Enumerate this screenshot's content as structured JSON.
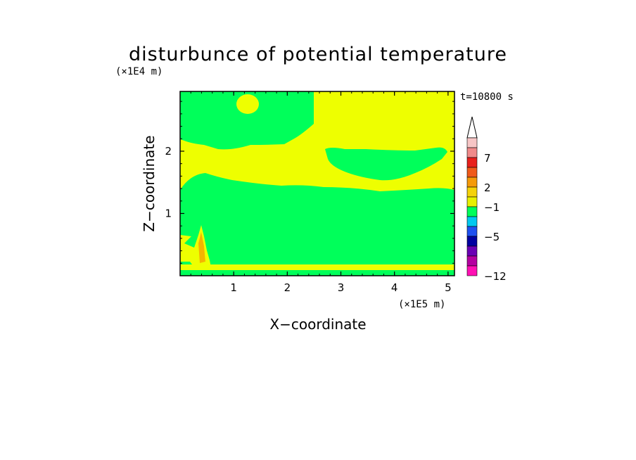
{
  "chart_data": {
    "type": "heatmap",
    "title": "disturbunce of potential temperature",
    "xlabel": "X−coordinate",
    "ylabel": "Z−coordinate",
    "x_unit": "(×1E5 m)",
    "y_unit": "(×1E4 m)",
    "time_label": "t=10800 s",
    "xlim": [
      0,
      5.12
    ],
    "ylim": [
      0,
      2.96
    ],
    "x_ticks": [
      "1",
      "2",
      "3",
      "4",
      "5"
    ],
    "y_ticks": [
      "1",
      "2"
    ],
    "x_tick_values": [
      1,
      2,
      3,
      4,
      5
    ],
    "y_tick_values": [
      1,
      2
    ],
    "colorbar": {
      "tick_labels": [
        "7",
        "2",
        "−1",
        "−5",
        "−12"
      ],
      "colors_top_to_bottom": [
        "#f7c6c6",
        "#f08a8a",
        "#e8201c",
        "#f05a1a",
        "#f59a0a",
        "#f5d20a",
        "#e8f000",
        "#00ff5a",
        "#00c8f0",
        "#1e50f0",
        "#0000a0",
        "#6a00b4",
        "#b400a0",
        "#ff10b4"
      ],
      "extend": "max"
    },
    "field_colors": {
      "positive_small": "#eeff00",
      "negative_small": "#00ff5a",
      "orange": "#f5b400",
      "blue": "#1e50f0"
    }
  }
}
